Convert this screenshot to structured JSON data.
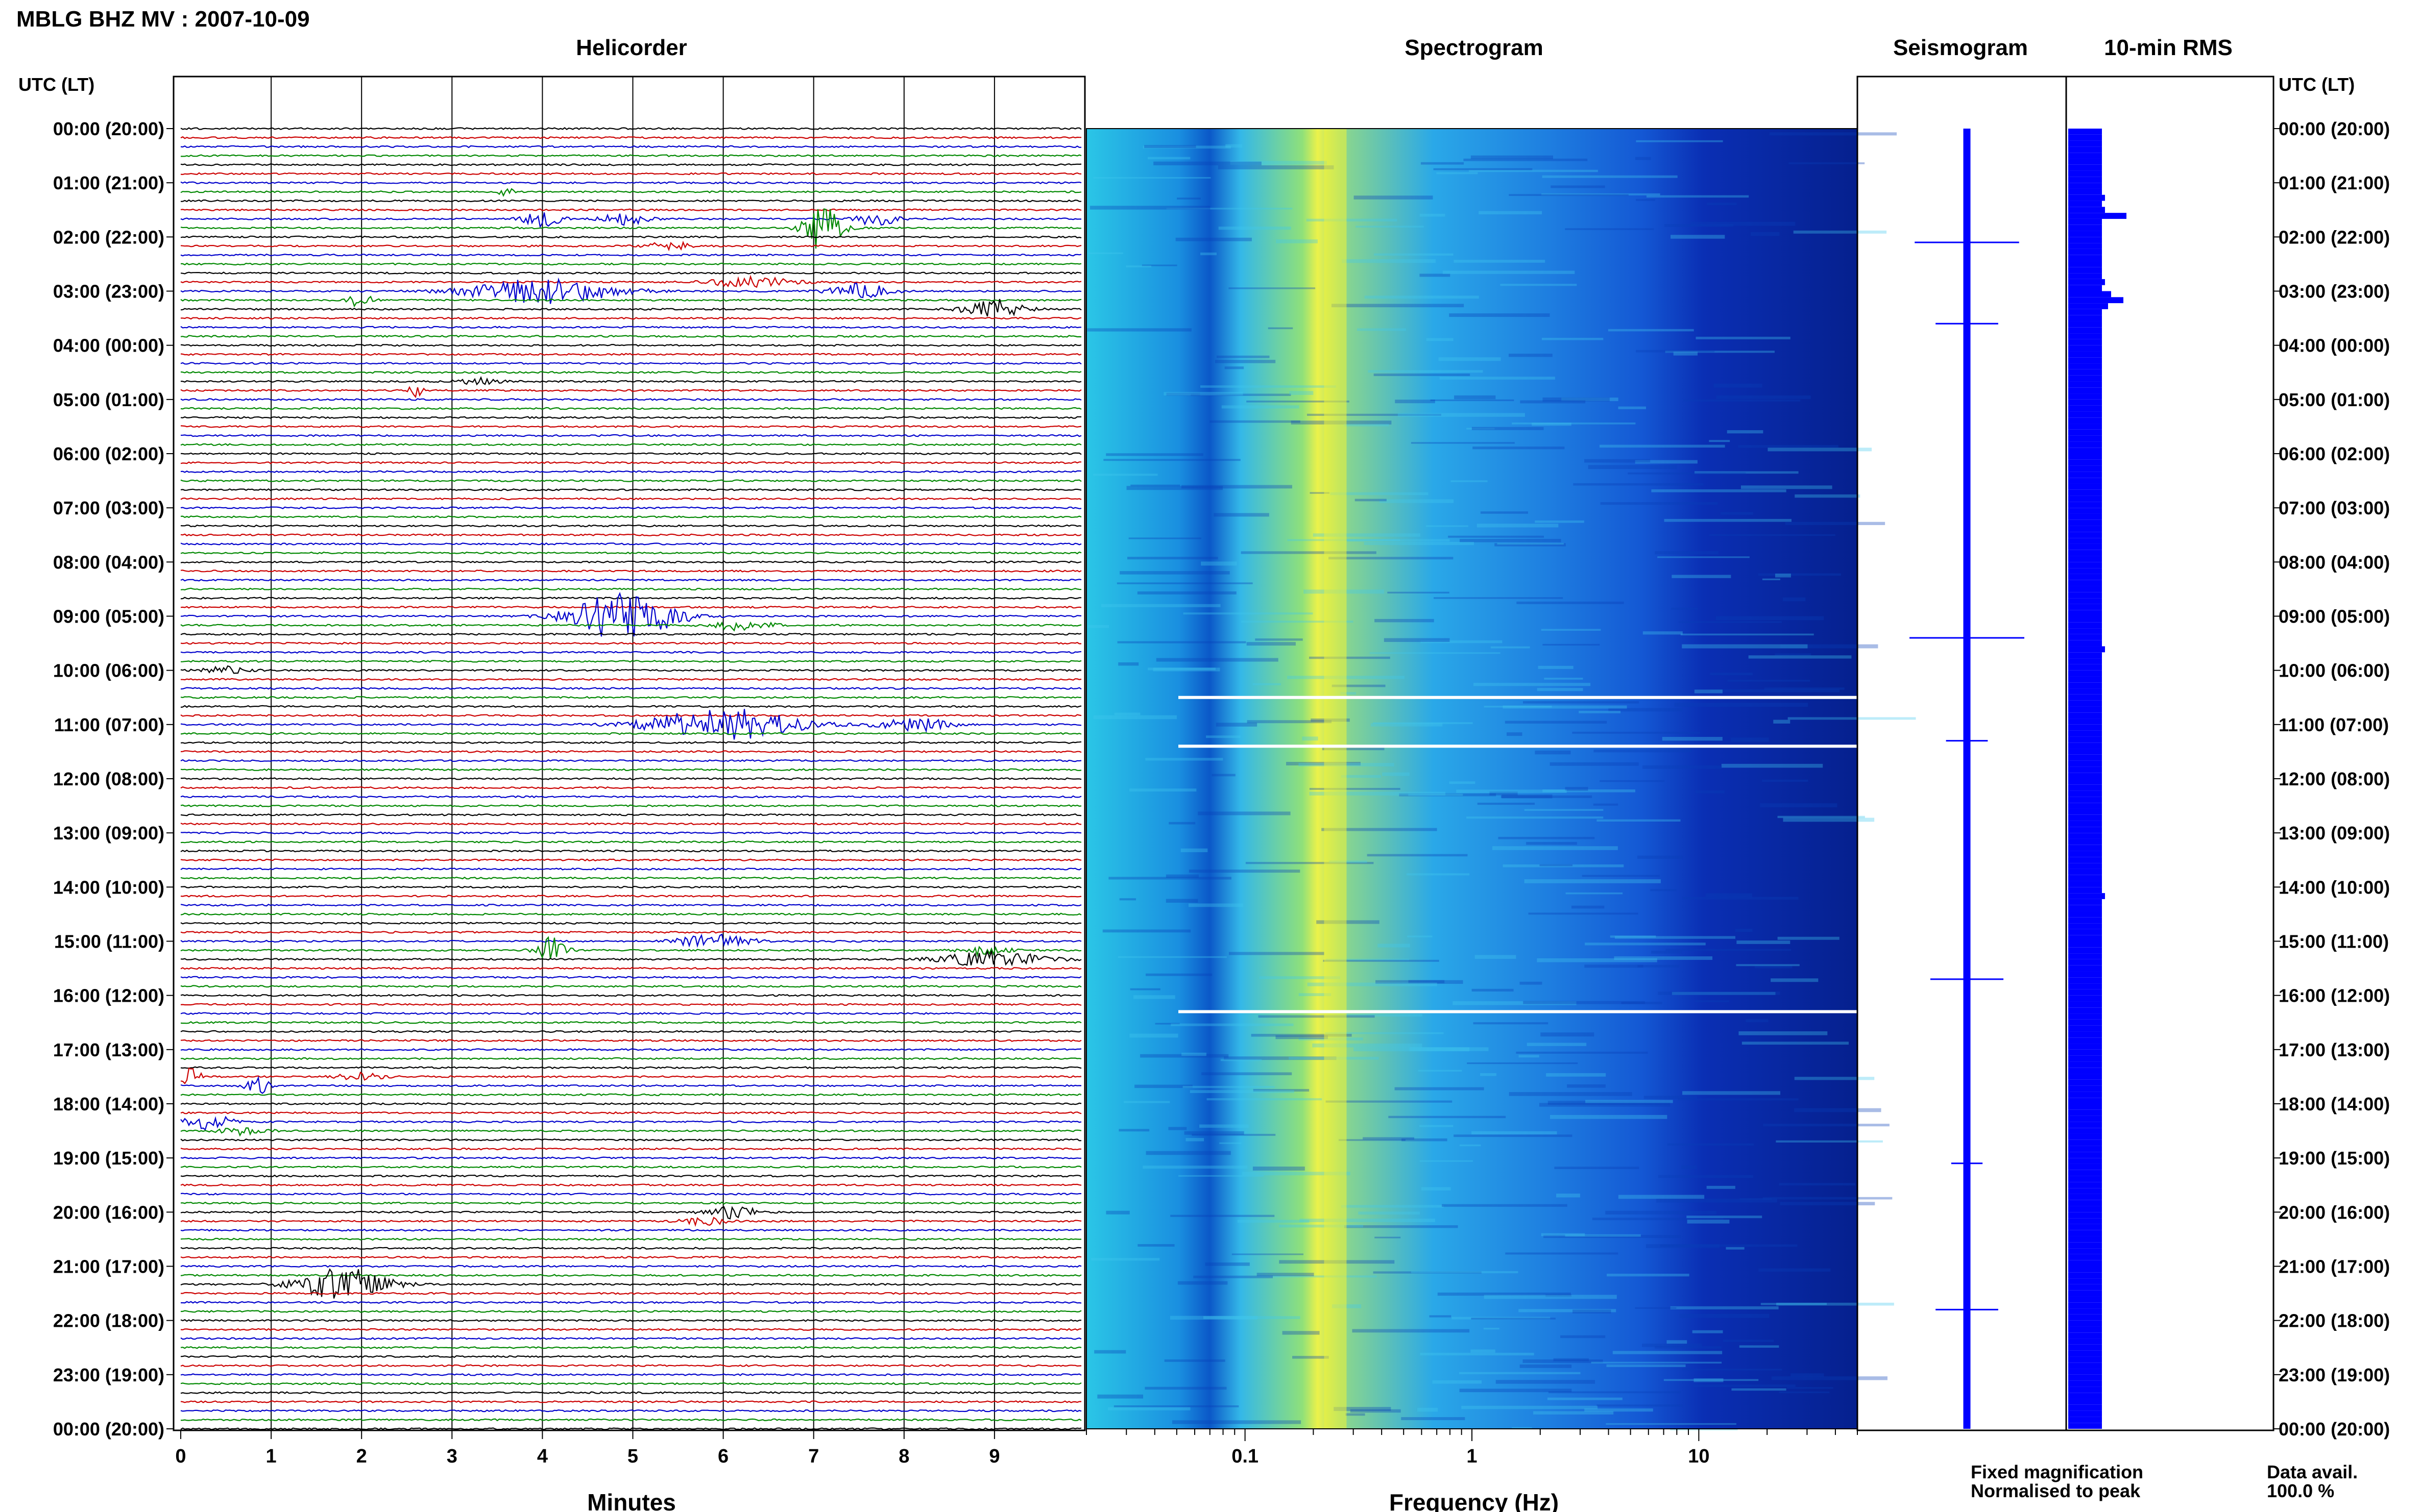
{
  "title": "MBLG BHZ MV : 2007-10-09",
  "panels": {
    "helicorder": "Helicorder",
    "spectrogram": "Spectrogram",
    "seismogram": "Seismogram",
    "rms": "10-min RMS"
  },
  "time_axis_label": "UTC (LT)",
  "time_labels": [
    "00:00 (20:00)",
    "01:00 (21:00)",
    "02:00 (22:00)",
    "03:00 (23:00)",
    "04:00 (00:00)",
    "05:00 (01:00)",
    "06:00 (02:00)",
    "07:00 (03:00)",
    "08:00 (04:00)",
    "09:00 (05:00)",
    "10:00 (06:00)",
    "11:00 (07:00)",
    "12:00 (08:00)",
    "13:00 (09:00)",
    "14:00 (10:00)",
    "15:00 (11:00)",
    "16:00 (12:00)",
    "17:00 (13:00)",
    "18:00 (14:00)",
    "19:00 (15:00)",
    "20:00 (16:00)",
    "21:00 (17:00)",
    "22:00 (18:00)",
    "23:00 (19:00)",
    "00:00 (20:00)"
  ],
  "legend": {
    "fixed": "Fixed magnification",
    "fixed_color": "#0000ff",
    "normalised": "Normalised to peak",
    "normalised_color": "#ff0000"
  },
  "data_availability": {
    "label": "Data avail.",
    "value": "100.0 %"
  },
  "colors": {
    "trace_cycle": [
      "#000000",
      "#cc0000",
      "#0000cc",
      "#008800"
    ],
    "rms_bar": "#0000ff",
    "seismogram": "#0000ff",
    "spectrogram_low": "#00008b",
    "spectrogram_high": "#ffff00"
  },
  "chart_data": [
    {
      "type": "line",
      "title": "Helicorder",
      "xlabel": "Minutes",
      "x_ticks": [
        "0",
        "1",
        "2",
        "3",
        "4",
        "5",
        "6",
        "7",
        "8",
        "9"
      ],
      "xlim": [
        0,
        10
      ],
      "rows_per_hour": 6,
      "hours": 24,
      "events": [
        {
          "hour": 1,
          "row": 1,
          "minute": 3.6,
          "amp": 1.2,
          "dur": 0.15
        },
        {
          "hour": 1,
          "row": 4,
          "minute": 4.0,
          "amp": 1.0,
          "dur": 0.5
        },
        {
          "hour": 1,
          "row": 4,
          "minute": 4.9,
          "amp": 0.8,
          "dur": 0.6
        },
        {
          "hour": 1,
          "row": 5,
          "minute": 7.1,
          "amp": 3.0,
          "dur": 0.5
        },
        {
          "hour": 1,
          "row": 4,
          "minute": 7.7,
          "amp": 0.8,
          "dur": 0.6
        },
        {
          "hour": 2,
          "row": 1,
          "minute": 5.4,
          "amp": 0.6,
          "dur": 0.6
        },
        {
          "hour": 2,
          "row": 5,
          "minute": 6.3,
          "amp": 0.6,
          "dur": 1.2
        },
        {
          "hour": 3,
          "row": 0,
          "minute": 4.0,
          "amp": 1.5,
          "dur": 2.0
        },
        {
          "hour": 3,
          "row": 1,
          "minute": 2.0,
          "amp": 1.0,
          "dur": 0.3
        },
        {
          "hour": 3,
          "row": 0,
          "minute": 7.5,
          "amp": 1.0,
          "dur": 0.8
        },
        {
          "hour": 3,
          "row": 2,
          "minute": 9.0,
          "amp": 1.2,
          "dur": 0.8
        },
        {
          "hour": 4,
          "row": 5,
          "minute": 2.6,
          "amp": 1.0,
          "dur": 0.2
        },
        {
          "hour": 4,
          "row": 4,
          "minute": 3.3,
          "amp": 0.4,
          "dur": 0.6
        },
        {
          "hour": 9,
          "row": 0,
          "minute": 4.9,
          "amp": 3.0,
          "dur": 1.4
        },
        {
          "hour": 9,
          "row": 1,
          "minute": 6.2,
          "amp": 0.6,
          "dur": 0.8
        },
        {
          "hour": 10,
          "row": 0,
          "minute": 0.5,
          "amp": 0.5,
          "dur": 0.6
        },
        {
          "hour": 11,
          "row": 0,
          "minute": 6.0,
          "amp": 2.0,
          "dur": 2.0
        },
        {
          "hour": 11,
          "row": 0,
          "minute": 8.1,
          "amp": 0.8,
          "dur": 1.0
        },
        {
          "hour": 15,
          "row": 0,
          "minute": 5.9,
          "amp": 0.8,
          "dur": 1.0
        },
        {
          "hour": 15,
          "row": 1,
          "minute": 8.9,
          "amp": 0.6,
          "dur": 0.6
        },
        {
          "hour": 15,
          "row": 1,
          "minute": 4.1,
          "amp": 1.6,
          "dur": 0.4
        },
        {
          "hour": 15,
          "row": 2,
          "minute": 9.0,
          "amp": 1.0,
          "dur": 1.4
        },
        {
          "hour": 17,
          "row": 3,
          "minute": 0.1,
          "amp": 1.0,
          "dur": 0.3
        },
        {
          "hour": 17,
          "row": 4,
          "minute": 0.85,
          "amp": 1.2,
          "dur": 0.3
        },
        {
          "hour": 17,
          "row": 3,
          "minute": 2.0,
          "amp": 0.5,
          "dur": 0.6
        },
        {
          "hour": 18,
          "row": 2,
          "minute": 0.3,
          "amp": 1.0,
          "dur": 0.6
        },
        {
          "hour": 18,
          "row": 3,
          "minute": 0.7,
          "amp": 0.5,
          "dur": 0.6
        },
        {
          "hour": 20,
          "row": 0,
          "minute": 6.1,
          "amp": 0.8,
          "dur": 0.7
        },
        {
          "hour": 20,
          "row": 1,
          "minute": 5.8,
          "amp": 0.5,
          "dur": 0.6
        },
        {
          "hour": 21,
          "row": 2,
          "minute": 1.8,
          "amp": 2.0,
          "dur": 1.2
        }
      ]
    },
    {
      "type": "heatmap",
      "title": "Spectrogram",
      "xlabel": "Frequency (Hz)",
      "x_scale": "log",
      "x_ticks": [
        0.1,
        1,
        10
      ],
      "x_tick_labels": [
        "0.1",
        "1",
        "10"
      ],
      "xlim": [
        0.02,
        50
      ],
      "peak_frequency_hz": 0.25,
      "gaps_hours": [
        10.5,
        11.4,
        16.3
      ]
    },
    {
      "type": "line",
      "title": "Seismogram",
      "spikes": [
        {
          "hour": 2.1,
          "amp": 0.5
        },
        {
          "hour": 3.6,
          "amp": 0.3
        },
        {
          "hour": 9.4,
          "amp": 0.55
        },
        {
          "hour": 11.3,
          "amp": 0.2
        },
        {
          "hour": 15.7,
          "amp": 0.35
        },
        {
          "hour": 19.1,
          "amp": 0.15
        },
        {
          "hour": 21.8,
          "amp": 0.3
        }
      ]
    },
    {
      "type": "bar",
      "title": "10-min RMS",
      "orientation": "horizontal",
      "values": [
        22,
        22,
        22,
        22,
        22,
        22,
        22,
        22,
        22,
        22,
        22,
        24,
        22,
        24,
        38,
        22,
        22,
        22,
        22,
        22,
        22,
        22,
        22,
        22,
        22,
        24,
        22,
        28,
        36,
        26,
        22,
        22,
        22,
        22,
        22,
        22,
        22,
        22,
        22,
        22,
        22,
        22,
        22,
        22,
        22,
        22,
        22,
        22,
        22,
        22,
        22,
        22,
        22,
        22,
        22,
        22,
        22,
        22,
        22,
        22,
        22,
        22,
        22,
        22,
        22,
        22,
        22,
        22,
        22,
        22,
        22,
        22,
        22,
        22,
        22,
        22,
        22,
        22,
        22,
        22,
        22,
        22,
        22,
        22,
        22,
        22,
        24,
        22,
        22,
        22,
        22,
        22,
        22,
        22,
        22,
        22,
        22,
        22,
        22,
        22,
        22,
        22,
        22,
        22,
        22,
        22,
        22,
        22,
        22,
        22,
        22,
        22,
        22,
        22,
        22,
        22,
        22,
        22,
        22,
        22,
        22,
        22,
        22,
        22,
        22,
        22,
        22,
        24,
        22,
        22,
        22,
        22,
        22,
        22,
        22,
        22,
        22,
        22,
        22,
        22,
        22,
        22,
        22,
        22,
        22,
        22,
        22,
        22,
        22,
        22,
        22,
        22,
        22,
        22,
        22,
        22,
        22,
        22,
        22,
        22,
        22,
        22,
        22,
        22,
        22,
        22,
        22,
        22,
        22,
        22,
        22,
        22,
        22,
        22,
        22,
        22,
        22,
        22,
        22,
        22,
        22,
        22,
        22,
        22,
        22,
        22,
        22,
        22,
        22,
        22,
        22,
        22,
        22,
        22,
        22,
        22,
        22,
        22,
        22,
        22,
        22,
        22,
        22,
        22,
        22,
        22,
        22,
        22,
        22,
        22,
        22,
        22,
        22,
        22,
        22,
        22
      ]
    }
  ]
}
